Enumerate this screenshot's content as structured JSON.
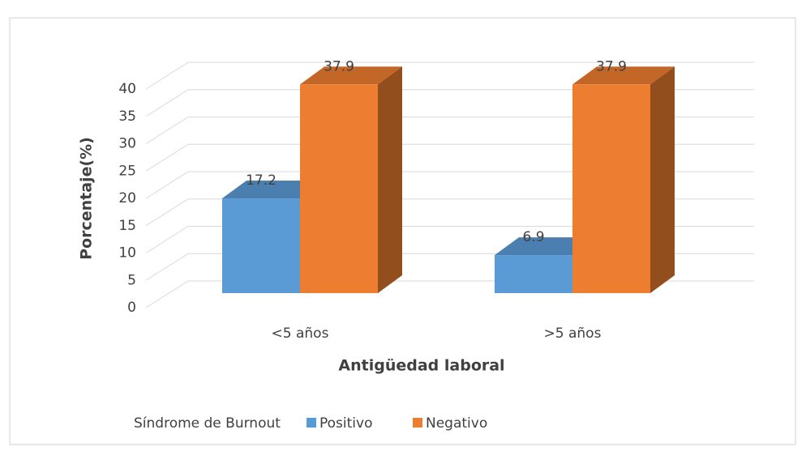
{
  "chart_data": {
    "type": "bar3d",
    "x_label": "Antigüedad laboral",
    "y_label": "Porcentaje(%)",
    "legend_title": "Síndrome de Burnout",
    "categories": [
      "<5 años",
      ">5 años"
    ],
    "series": [
      {
        "name": "Positivo",
        "color": "#5b9bd5",
        "values": [
          17.2,
          6.9
        ]
      },
      {
        "name": "Negativo",
        "color": "#ed7d31",
        "values": [
          37.9,
          37.9
        ]
      }
    ],
    "ylim": [
      0,
      40
    ],
    "yticks": [
      0,
      5,
      10,
      15,
      20,
      25,
      30,
      35,
      40
    ],
    "grid": true,
    "legend": "bottom"
  }
}
